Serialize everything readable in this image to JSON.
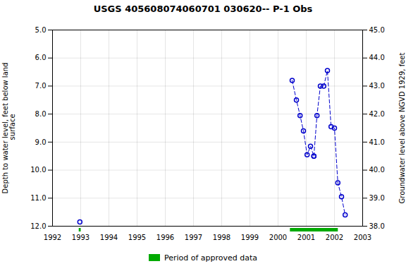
{
  "chart_data": {
    "type": "line",
    "title": "USGS 405608074060701 030620-- P-1 Obs",
    "ylabel": "Depth to water level, feet below land\n surface",
    "y2label": "Groundwater level above NGVD 1929, feet",
    "xlim": [
      1992,
      2003
    ],
    "xticks": [
      1992,
      1993,
      1994,
      1995,
      1996,
      1997,
      1998,
      1999,
      2000,
      2001,
      2002,
      2003
    ],
    "ylim": [
      12.0,
      5.0
    ],
    "yticks": [
      {
        "value": 5.0,
        "label": "5.0"
      },
      {
        "value": 6.0,
        "label": "6.0"
      },
      {
        "value": 7.0,
        "label": "7.0"
      },
      {
        "value": 8.0,
        "label": "8.0"
      },
      {
        "value": 9.0,
        "label": "9.0"
      },
      {
        "value": 10.0,
        "label": "10.0"
      },
      {
        "value": 11.0,
        "label": "11.0"
      },
      {
        "value": 12.0,
        "label": "12.0"
      }
    ],
    "y2lim": [
      38.0,
      45.0
    ],
    "y2ticks": [
      {
        "value": 38.0,
        "label": "38.0"
      },
      {
        "value": 39.0,
        "label": "39.0"
      },
      {
        "value": 40.0,
        "label": "40.0"
      },
      {
        "value": 41.0,
        "label": "41.0"
      },
      {
        "value": 42.0,
        "label": "42.0"
      },
      {
        "value": 43.0,
        "label": "43.0"
      },
      {
        "value": 44.0,
        "label": "44.0"
      },
      {
        "value": 45.0,
        "label": "45.0"
      }
    ],
    "grid": true,
    "legend": "bottom",
    "series": [
      {
        "x": [
          1992.97
        ],
        "values": [
          11.85
        ],
        "color": "#0000cc",
        "marker": "circle",
        "line_style": "dashed"
      },
      {
        "x": [
          2000.5,
          2000.65,
          2000.78,
          2000.9,
          2001.03,
          2001.15,
          2001.27
        ],
        "values": [
          6.8,
          7.5,
          8.05,
          8.6,
          9.45,
          9.15,
          9.5
        ],
        "color": "#0000cc",
        "marker": "circle",
        "line_style": "dashed"
      },
      {
        "x": [
          2001.27,
          2001.38,
          2001.5,
          2001.62,
          2001.75,
          2001.88,
          2002.0,
          2002.12,
          2002.25,
          2002.38
        ],
        "values": [
          9.5,
          8.05,
          7.0,
          7.0,
          6.45,
          8.45,
          8.5,
          10.45,
          10.95,
          11.6
        ],
        "color": "#0000cc",
        "marker": "circle",
        "line_style": "dashed"
      }
    ],
    "approved_periods": {
      "name": "Period of approved data",
      "color": "#00aa00",
      "start": [
        1992.93,
        2000.42
      ],
      "end": [
        1993.0,
        2002.12
      ]
    }
  }
}
